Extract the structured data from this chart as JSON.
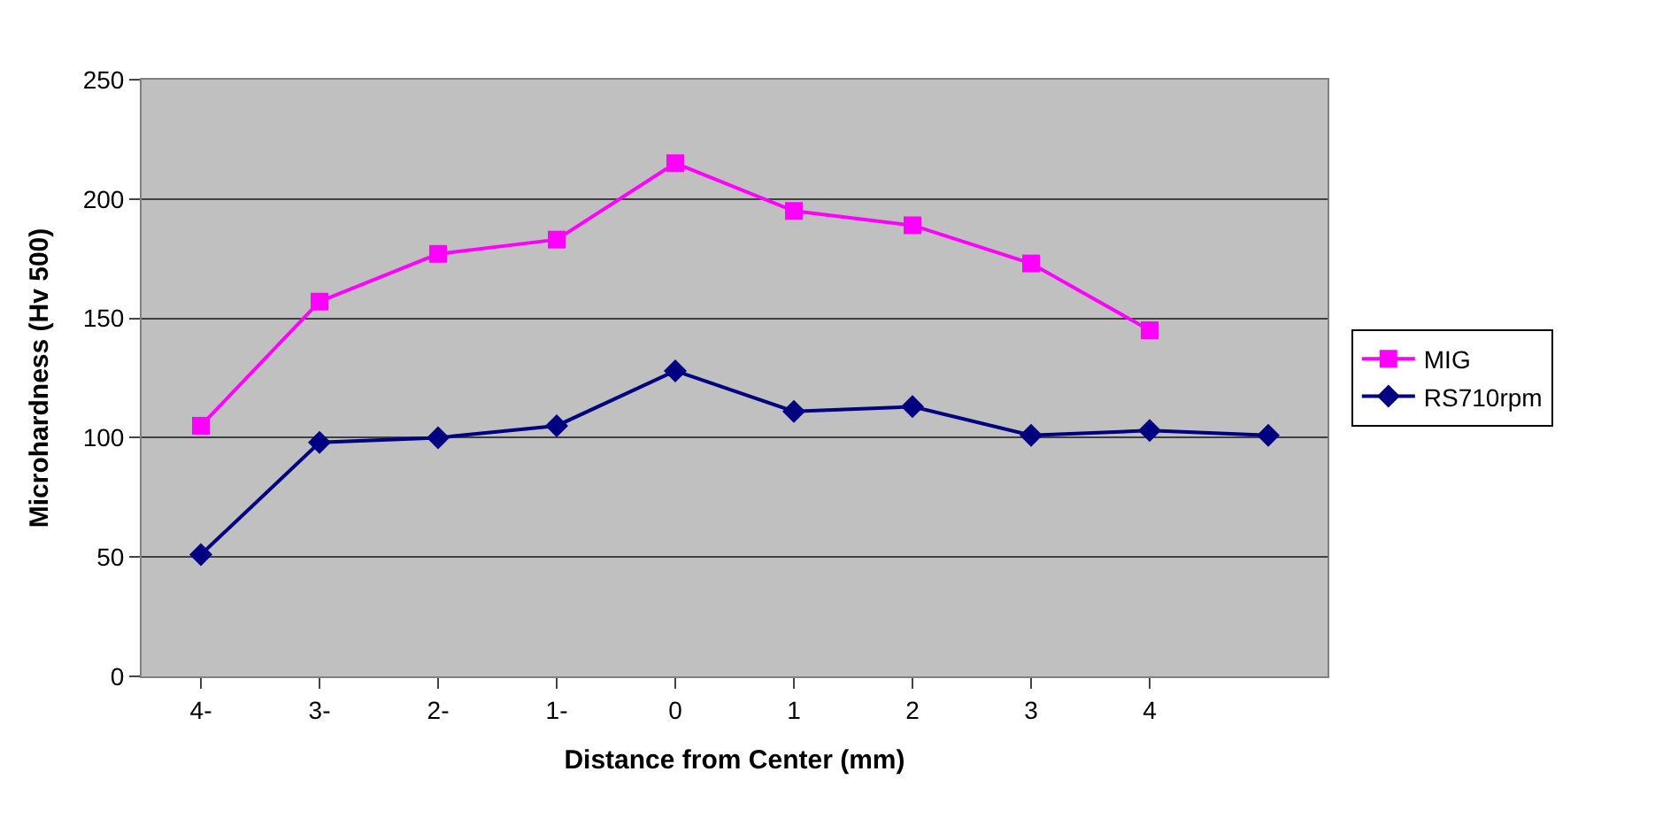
{
  "chart_data": {
    "type": "line",
    "xlabel": "Distance from Center (mm)",
    "ylabel": "Microhardness (Hv 500)",
    "categories": [
      "4-",
      "3-",
      "2-",
      "1-",
      "0",
      "1",
      "2",
      "3",
      "4",
      null
    ],
    "series": [
      {
        "name": "MIG",
        "color": "#ff00ff",
        "marker": "square",
        "values": [
          105,
          157,
          177,
          183,
          215,
          195,
          189,
          173,
          145,
          null
        ]
      },
      {
        "name": "RS710rpm",
        "color": "#000080",
        "marker": "diamond",
        "values": [
          51,
          98,
          100,
          105,
          128,
          111,
          113,
          101,
          103,
          101
        ]
      }
    ],
    "ylim": [
      0,
      250
    ],
    "yticks": [
      0,
      50,
      100,
      150,
      200,
      250
    ],
    "grid": "y",
    "legend": "right",
    "line_style": "solid"
  }
}
